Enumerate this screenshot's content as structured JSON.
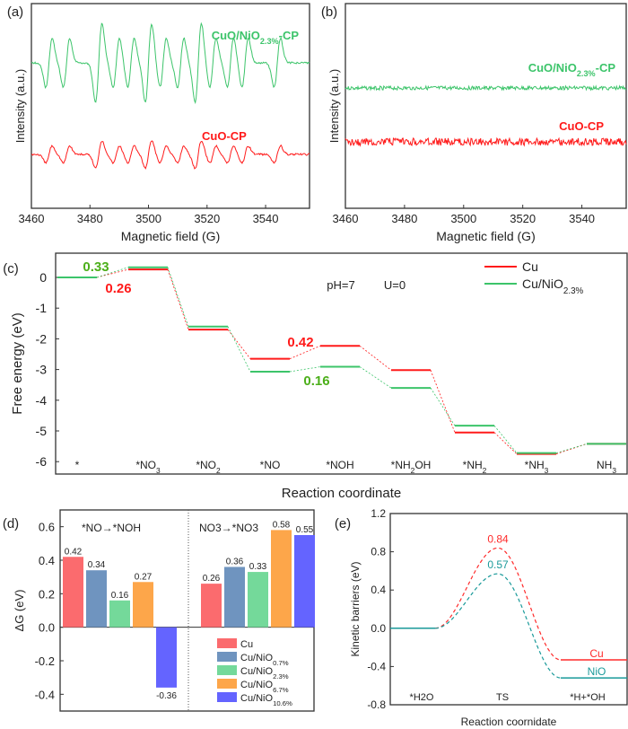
{
  "chart_data": [
    {
      "panel": "(a)",
      "type": "line",
      "xlabel": "Magnetic field (G)",
      "ylabel": "Intensity (a.u.)",
      "xlim": [
        3460,
        3555
      ],
      "xticks": [
        3460,
        3480,
        3500,
        3520,
        3540
      ],
      "series": [
        {
          "name": "CuO/NiO2.3%-CP",
          "label_main": "CuO/NiO",
          "label_sub": "2.3%",
          "label_end": "-CP",
          "color": "#3cc46a",
          "amp": 1.0
        },
        {
          "name": "CuO-CP",
          "label_main": "CuO-CP",
          "color": "#ff1a1a",
          "amp": 0.35
        }
      ]
    },
    {
      "panel": "(b)",
      "type": "line",
      "xlabel": "Magnetic field (G)",
      "ylabel": "Intensity (a.u.)",
      "xlim": [
        3460,
        3555
      ],
      "xticks": [
        3460,
        3480,
        3500,
        3520,
        3540
      ],
      "series": [
        {
          "name": "CuO/NiO2.3%-CP",
          "label_main": "CuO/NiO",
          "label_sub": "2.3%",
          "label_end": "-CP",
          "color": "#3cc46a",
          "amp": 0.1
        },
        {
          "name": "CuO-CP",
          "label_main": "CuO-CP",
          "color": "#ff1a1a",
          "amp": 0.2
        }
      ]
    },
    {
      "panel": "(c)",
      "type": "line",
      "xlabel": "Reaction coordinate",
      "ylabel": "Free energy (eV)",
      "ylim": [
        -6.4,
        0.9
      ],
      "yticks": [
        0,
        -1,
        -2,
        -3,
        -4,
        -5,
        -6
      ],
      "categories": [
        [
          "*",
          ""
        ],
        [
          "*NO",
          "3"
        ],
        [
          "*NO",
          "2"
        ],
        [
          "*NO",
          ""
        ],
        [
          "*NOH",
          ""
        ],
        [
          "*NH",
          "2",
          "OH"
        ],
        [
          "*NH",
          "2"
        ],
        [
          "*NH",
          "3"
        ],
        [
          "NH",
          "3"
        ]
      ],
      "annotation": "pH=7     U=0",
      "series": [
        {
          "name": "Cu",
          "legend": "Cu",
          "color": "#ff1a1a",
          "values": [
            0,
            0.26,
            -1.7,
            -2.65,
            -2.23,
            -3.02,
            -5.05,
            -5.75,
            -5.42
          ]
        },
        {
          "name": "Cu/NiO2.3%",
          "legend": "Cu/NiO",
          "legend_sub": "2.3%",
          "color": "#3cc46a",
          "values": [
            0,
            0.33,
            -1.6,
            -3.07,
            -2.91,
            -3.6,
            -4.83,
            -5.72,
            -5.42
          ]
        }
      ],
      "labels": [
        {
          "text": "0.33",
          "color": "#4caf1a",
          "step": 0,
          "value": 0.33
        },
        {
          "text": "0.26",
          "color": "#ff1a1a",
          "step": 0,
          "value": 0.26
        },
        {
          "text": "0.42",
          "color": "#ff1a1a",
          "step": 3,
          "value": 0.42
        },
        {
          "text": "0.16",
          "color": "#4caf1a",
          "step": 3,
          "value": 0.16
        }
      ]
    },
    {
      "panel": "(d)",
      "type": "bar",
      "ylabel": "ΔG (eV)",
      "ylim": [
        -0.5,
        0.7
      ],
      "yticks": [
        0.6,
        0.4,
        0.2,
        0.0,
        -0.2,
        -0.4
      ],
      "groups": [
        {
          "title": "*NO→*NOH",
          "values": [
            0.42,
            0.34,
            0.16,
            0.27,
            -0.36
          ]
        },
        {
          "title": "NO3→*NO3",
          "values": [
            0.26,
            0.36,
            0.33,
            0.58,
            0.55
          ]
        }
      ],
      "series": [
        {
          "name": "Cu",
          "sub": "",
          "color": "#fb6b6e"
        },
        {
          "name": "Cu/NiO",
          "sub": "0.7%",
          "color": "#6f94bf"
        },
        {
          "name": "Cu/NiO",
          "sub": "2.3%",
          "color": "#74d99a"
        },
        {
          "name": "Cu/NiO",
          "sub": "6.7%",
          "color": "#fda64a"
        },
        {
          "name": "Cu/NiO",
          "sub": "10.6%",
          "color": "#6464ff"
        }
      ]
    },
    {
      "panel": "(e)",
      "type": "line",
      "xlabel": "Reaction coornidate",
      "ylabel": "Kinetic barriers (eV)",
      "ylim": [
        -0.8,
        1.2
      ],
      "yticks": [
        1.2,
        0.8,
        0.4,
        0.0,
        -0.4,
        -0.8
      ],
      "categories": [
        "*H2O",
        "TS",
        "*H+*OH"
      ],
      "series": [
        {
          "name": "Cu",
          "color": "#ff2a2a",
          "ts": 0.84,
          "final": -0.33
        },
        {
          "name": "NiO",
          "color": "#1a9a9a",
          "ts": 0.57,
          "final": -0.52
        }
      ]
    }
  ]
}
